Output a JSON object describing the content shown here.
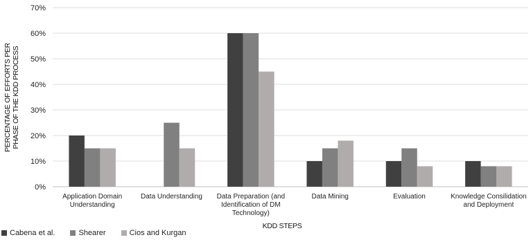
{
  "chart_data": {
    "type": "bar",
    "xlabel": "KDD STEPS",
    "ylabel_lines": [
      "PERCENTAGE OF EFFORTS PER",
      "PHASE OF THE KDD PROCESS"
    ],
    "ylim": [
      0,
      70
    ],
    "yticks": [
      "0%",
      "10%",
      "20%",
      "30%",
      "40%",
      "50%",
      "60%",
      "70%"
    ],
    "grid": true,
    "legend_position": "bottom-left",
    "categories": [
      [
        "Application Domain",
        "Understanding"
      ],
      [
        "Data Understanding"
      ],
      [
        "Data Preparation (and",
        "Identification of DM",
        "Technology)"
      ],
      [
        "Data Mining"
      ],
      [
        "Evaluation"
      ],
      [
        "Knowledge Consilidation",
        "and Deployment"
      ]
    ],
    "series": [
      {
        "name": "Cabena et al.",
        "color": "#404040",
        "values": [
          20,
          0,
          60,
          10,
          10,
          10
        ]
      },
      {
        "name": "Shearer",
        "color": "#808080",
        "values": [
          15,
          25,
          60,
          15,
          15,
          8
        ]
      },
      {
        "name": "Cios and Kurgan",
        "color": "#b0acac",
        "values": [
          15,
          15,
          45,
          18,
          8,
          8
        ]
      }
    ]
  }
}
